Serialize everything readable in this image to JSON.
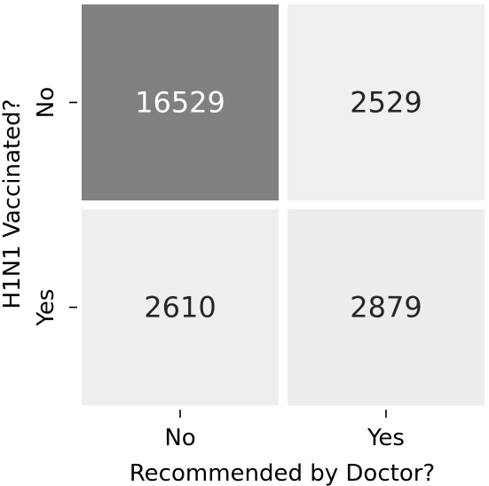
{
  "chart_data": {
    "type": "heatmap",
    "title": "",
    "xlabel": "Recommended by Doctor?",
    "ylabel": "H1N1 Vaccinated?",
    "x_categories": [
      "No",
      "Yes"
    ],
    "y_categories": [
      "No",
      "Yes"
    ],
    "values": [
      [
        16529,
        2529
      ],
      [
        2610,
        2879
      ]
    ],
    "colormap": {
      "low": "#f0f0f0",
      "high": "#808080"
    },
    "cell_gap_color": "#ffffff",
    "annotation_colors": {
      "on_dark": "#ffffff",
      "on_light": "#262626"
    },
    "colorbar": false,
    "grid": false
  }
}
